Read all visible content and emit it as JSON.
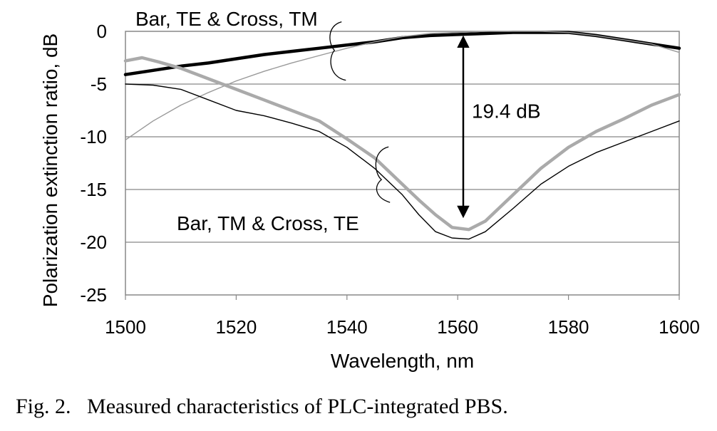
{
  "chart_data": {
    "type": "line",
    "xlabel": "Wavelength, nm",
    "ylabel": "Polarization extinction ratio, dB",
    "xlim": [
      1500,
      1600
    ],
    "ylim": [
      -25,
      0
    ],
    "xticks": [
      1500,
      1520,
      1540,
      1560,
      1580,
      1600
    ],
    "yticks": [
      0,
      -5,
      -10,
      -15,
      -20,
      -25
    ],
    "grid": "horizontal",
    "series": [
      {
        "color": "#000000",
        "style": "thick",
        "x": [
          1500,
          1505,
          1510,
          1515,
          1520,
          1525,
          1530,
          1535,
          1540,
          1545,
          1550,
          1555,
          1560,
          1565,
          1570,
          1575,
          1580,
          1585,
          1590,
          1595,
          1600
        ],
        "y": [
          -4.1,
          -3.7,
          -3.3,
          -3.0,
          -2.6,
          -2.2,
          -1.9,
          -1.6,
          -1.3,
          -1.0,
          -0.6,
          -0.4,
          -0.3,
          -0.2,
          -0.1,
          -0.1,
          -0.1,
          -0.4,
          -0.8,
          -1.2,
          -1.6
        ]
      },
      {
        "color": "#999999",
        "style": "thin",
        "x": [
          1500,
          1505,
          1510,
          1515,
          1520,
          1525,
          1530,
          1535,
          1540,
          1545,
          1550,
          1555,
          1560,
          1565,
          1570,
          1575,
          1580,
          1585,
          1590,
          1595,
          1600
        ],
        "y": [
          -10.3,
          -8.5,
          -7.0,
          -5.8,
          -4.7,
          -3.8,
          -3.0,
          -2.3,
          -1.6,
          -1.0,
          -0.5,
          -0.2,
          -0.1,
          0.0,
          0.0,
          0.0,
          -0.1,
          -0.4,
          -0.8,
          -1.2,
          -2.0
        ]
      },
      {
        "color": "#aaaaaa",
        "style": "thick",
        "x": [
          1500,
          1503,
          1506,
          1510,
          1515,
          1520,
          1525,
          1530,
          1535,
          1540,
          1545,
          1550,
          1553,
          1556,
          1559,
          1562,
          1565,
          1570,
          1575,
          1580,
          1585,
          1590,
          1595,
          1600
        ],
        "y": [
          -2.8,
          -2.5,
          -2.9,
          -3.5,
          -4.5,
          -5.5,
          -6.5,
          -7.5,
          -8.5,
          -10.2,
          -12.0,
          -14.5,
          -16.0,
          -17.4,
          -18.6,
          -18.8,
          -18.0,
          -15.5,
          -13.0,
          -11.0,
          -9.5,
          -8.3,
          -7.0,
          -6.0
        ]
      },
      {
        "color": "#000000",
        "style": "thin",
        "x": [
          1500,
          1505,
          1510,
          1515,
          1520,
          1525,
          1530,
          1535,
          1540,
          1545,
          1550,
          1553,
          1556,
          1559,
          1562,
          1565,
          1570,
          1575,
          1580,
          1585,
          1590,
          1595,
          1600
        ],
        "y": [
          -5.0,
          -5.1,
          -5.5,
          -6.5,
          -7.5,
          -8.0,
          -8.7,
          -9.5,
          -11.0,
          -13.0,
          -15.5,
          -17.4,
          -19.0,
          -19.6,
          -19.7,
          -19.0,
          -16.8,
          -14.5,
          -12.8,
          -11.5,
          -10.5,
          -9.5,
          -8.5
        ]
      }
    ],
    "annotations": {
      "top_label": "Bar, TE & Cross, TM",
      "bottom_label": "Bar, TM & Cross, TE",
      "arrow_label": "19.4 dB",
      "arrow": {
        "x": 1561,
        "y_from": -0.3,
        "y_to": -17.8
      },
      "bracket_top": {
        "x": 1538,
        "y": -1.8
      },
      "bracket_bottom": {
        "x": 1547,
        "y": -14.6
      }
    }
  },
  "caption": "Fig. 2.   Measured characteristics of PLC-integrated PBS."
}
